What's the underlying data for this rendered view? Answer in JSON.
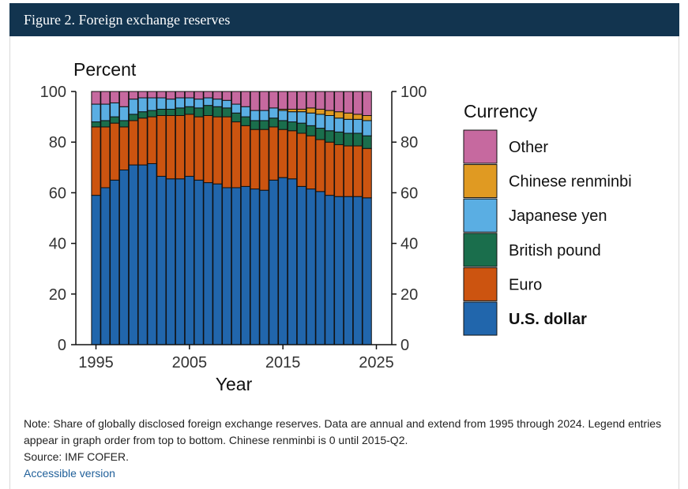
{
  "header": {
    "title": "Figure 2. Foreign exchange reserves"
  },
  "notes": {
    "note": "Note: Share of globally disclosed foreign exchange reserves. Data are annual and extend from 1995 through 2024. Legend entries appear in graph order from top to bottom. Chinese renminbi is 0 until 2015-Q2.",
    "source": "Source: IMF COFER.",
    "link_label": "Accessible version"
  },
  "chart_data": {
    "type": "bar",
    "stacked": true,
    "unit_label": "Percent",
    "xlabel": "Year",
    "x_ticks": [
      1995,
      2005,
      2015,
      2025
    ],
    "y_ticks": [
      0,
      20,
      40,
      60,
      80,
      100
    ],
    "ylim": [
      0,
      100
    ],
    "legend_title": "Currency",
    "legend_order": [
      "Other",
      "Chinese renminbi",
      "Japanese yen",
      "British pound",
      "Euro",
      "U.S. dollar"
    ],
    "categories": [
      1995,
      1996,
      1997,
      1998,
      1999,
      2000,
      2001,
      2002,
      2003,
      2004,
      2005,
      2006,
      2007,
      2008,
      2009,
      2010,
      2011,
      2012,
      2013,
      2014,
      2015,
      2016,
      2017,
      2018,
      2019,
      2020,
      2021,
      2022,
      2023,
      2024
    ],
    "series": [
      {
        "name": "U.S. dollar",
        "color": "#2166ac",
        "values": [
          59,
          62,
          65,
          69,
          71,
          71,
          71.5,
          66.5,
          65.5,
          65.5,
          66.5,
          65,
          64,
          63.5,
          62,
          62,
          62.5,
          61.5,
          61,
          65,
          66,
          65.5,
          62.5,
          61.5,
          60.5,
          59,
          58.5,
          58.5,
          58.5,
          58
        ]
      },
      {
        "name": "Euro",
        "color": "#cc5410",
        "values": [
          27,
          24,
          22.5,
          17,
          17.5,
          18.5,
          18.5,
          24,
          25,
          25,
          24.5,
          25,
          26.5,
          26.5,
          28,
          26,
          24,
          23.5,
          24,
          21,
          19,
          19,
          21,
          21,
          20.5,
          21,
          20.5,
          20,
          20,
          19.5
        ]
      },
      {
        "name": "British pound",
        "color": "#1a6e4c",
        "values": [
          2,
          2.5,
          2.5,
          2.5,
          2.5,
          2.5,
          2.5,
          2.5,
          2.5,
          3,
          3,
          3.5,
          4,
          4,
          3.5,
          3.5,
          3.5,
          3.5,
          3.5,
          3.5,
          3.5,
          3.5,
          4,
          4,
          4.5,
          4.5,
          5,
          5,
          5,
          5
        ]
      },
      {
        "name": "Japanese yen",
        "color": "#5aaee3",
        "values": [
          7,
          6.5,
          5.5,
          5.5,
          6,
          5.5,
          5,
          4.5,
          4,
          4,
          3.5,
          3.5,
          3,
          3,
          3,
          3.5,
          4,
          4,
          4,
          4,
          4,
          4,
          4.5,
          5,
          5.5,
          6,
          5.5,
          5.5,
          5.5,
          6
        ]
      },
      {
        "name": "Chinese renminbi",
        "color": "#e09a22",
        "values": [
          0,
          0,
          0,
          0,
          0,
          0,
          0,
          0,
          0,
          0,
          0,
          0,
          0,
          0,
          0,
          0,
          0,
          0,
          0,
          0,
          0.5,
          1,
          1,
          2,
          2,
          2,
          2.5,
          2.5,
          2,
          2
        ]
      },
      {
        "name": "Other",
        "color": "#c6699f",
        "values": [
          5,
          5,
          4.5,
          6,
          3,
          2.5,
          2.5,
          2.5,
          3,
          2.5,
          2.5,
          3,
          2.5,
          3,
          3.5,
          5,
          6,
          7.5,
          7.5,
          6.5,
          7,
          7,
          7,
          6.5,
          7,
          7.5,
          8,
          8.5,
          9,
          9.5
        ]
      }
    ]
  }
}
